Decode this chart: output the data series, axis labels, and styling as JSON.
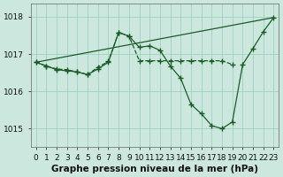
{
  "title": "Graphe pression niveau de la mer (hPa)",
  "ylim": [
    1014.5,
    1018.35
  ],
  "xlim": [
    -0.5,
    23.5
  ],
  "yticks": [
    1015,
    1016,
    1017,
    1018
  ],
  "background_color": "#cce8de",
  "grid_color": "#99ccb8",
  "line_color": "#1a5c28",
  "line1_x": [
    0,
    23
  ],
  "line1_y": [
    1016.78,
    1017.98
  ],
  "line2_x": [
    0,
    1,
    2,
    3,
    4,
    5,
    6,
    7,
    8,
    9,
    10,
    11,
    12,
    13,
    14,
    15,
    16,
    17,
    18,
    19,
    20,
    21,
    22,
    23
  ],
  "line2_y": [
    1016.78,
    1016.68,
    1016.58,
    1016.55,
    1016.52,
    1016.45,
    1016.6,
    1016.78,
    1017.58,
    1017.48,
    1017.18,
    1017.22,
    1017.1,
    1016.68,
    1016.35,
    1015.65,
    1015.4,
    1015.08,
    1015.0,
    1015.18,
    1016.72,
    1017.15,
    1017.6,
    1017.98
  ],
  "line3_x": [
    0,
    1,
    2,
    3,
    4,
    5,
    6,
    7,
    8,
    9,
    10,
    11,
    12,
    13,
    14,
    15,
    16,
    17,
    18,
    19
  ],
  "line3_y": [
    1016.78,
    1016.68,
    1016.6,
    1016.58,
    1016.52,
    1016.45,
    1016.65,
    1016.8,
    1017.58,
    1017.48,
    1016.82,
    1016.82,
    1016.82,
    1016.82,
    1016.82,
    1016.82,
    1016.82,
    1016.82,
    1016.82,
    1016.72
  ],
  "fontsize_label": 7.5,
  "fontsize_tick": 6.5
}
